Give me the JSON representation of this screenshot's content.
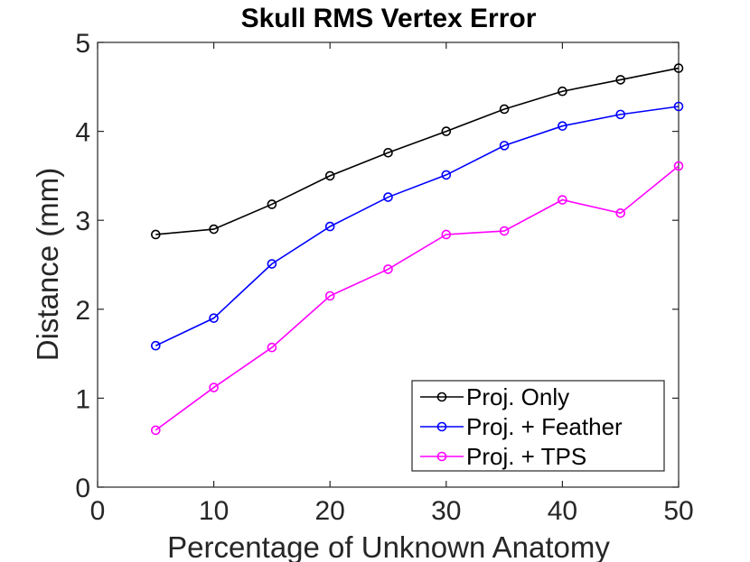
{
  "chart_data": {
    "type": "line",
    "title": "Skull RMS Vertex Error",
    "xlabel": "Percentage of Unknown Anatomy",
    "ylabel": "Distance (mm)",
    "xlim": [
      0,
      50
    ],
    "ylim": [
      0,
      5
    ],
    "xticks": [
      0,
      10,
      20,
      30,
      40,
      50
    ],
    "yticks": [
      0,
      1,
      2,
      3,
      4,
      5
    ],
    "grid": false,
    "legend_position": "bottom-right",
    "x": [
      5,
      10,
      15,
      20,
      25,
      30,
      35,
      40,
      45,
      50
    ],
    "series": [
      {
        "name": "Proj. Only",
        "color": "#000000",
        "marker": "circle",
        "values": [
          2.84,
          2.9,
          3.18,
          3.5,
          3.76,
          4.0,
          4.25,
          4.45,
          4.58,
          4.71
        ]
      },
      {
        "name": "Proj. + Feather",
        "color": "#0000ff",
        "marker": "circle",
        "values": [
          1.59,
          1.9,
          2.51,
          2.93,
          3.26,
          3.51,
          3.84,
          4.06,
          4.19,
          4.28
        ]
      },
      {
        "name": "Proj. + TPS",
        "color": "#ff00ff",
        "marker": "circle",
        "values": [
          0.64,
          1.12,
          1.57,
          2.15,
          2.45,
          2.84,
          2.88,
          3.23,
          3.08,
          3.61
        ]
      }
    ]
  }
}
